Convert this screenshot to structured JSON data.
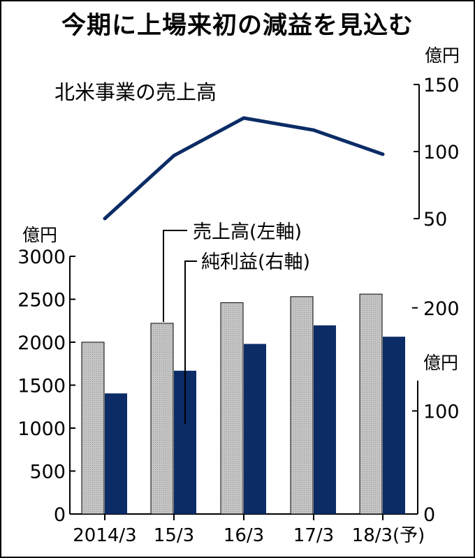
{
  "title": "今期に上場来初の減益を見込む",
  "colors": {
    "sales_bar": "#b8b8b8",
    "profit_bar": "#0b2c66",
    "line": "#0b2c66",
    "axis": "#000000"
  },
  "chart_data": [
    {
      "type": "line",
      "title": "北米事業の売上高",
      "unit": "億円",
      "axis_side": "right",
      "ylim": [
        50,
        150
      ],
      "yticks": [
        50,
        100,
        150
      ],
      "x": [
        "2014/3",
        "15/3",
        "16/3",
        "17/3",
        "18/3(予)"
      ],
      "series": [
        {
          "name": "北米事業の売上高",
          "values": [
            50,
            97,
            125,
            116,
            98
          ]
        }
      ]
    },
    {
      "type": "bar",
      "categories": [
        "2014/3",
        "15/3",
        "16/3",
        "17/3",
        "18/3(予)"
      ],
      "left_axis": {
        "unit": "億円",
        "ylim": [
          0,
          3000
        ],
        "yticks": [
          0,
          500,
          1000,
          1500,
          2000,
          2500,
          3000
        ]
      },
      "right_axis": {
        "unit": "億円",
        "ylim": [
          0,
          250
        ],
        "yticks": [
          0,
          100,
          200
        ]
      },
      "series": [
        {
          "name": "売上高(左軸)",
          "axis": "left",
          "values": [
            2000,
            2220,
            2460,
            2530,
            2560
          ]
        },
        {
          "name": "純利益(右軸)",
          "axis": "right",
          "values": [
            117,
            139,
            165,
            183,
            172
          ]
        }
      ]
    }
  ]
}
